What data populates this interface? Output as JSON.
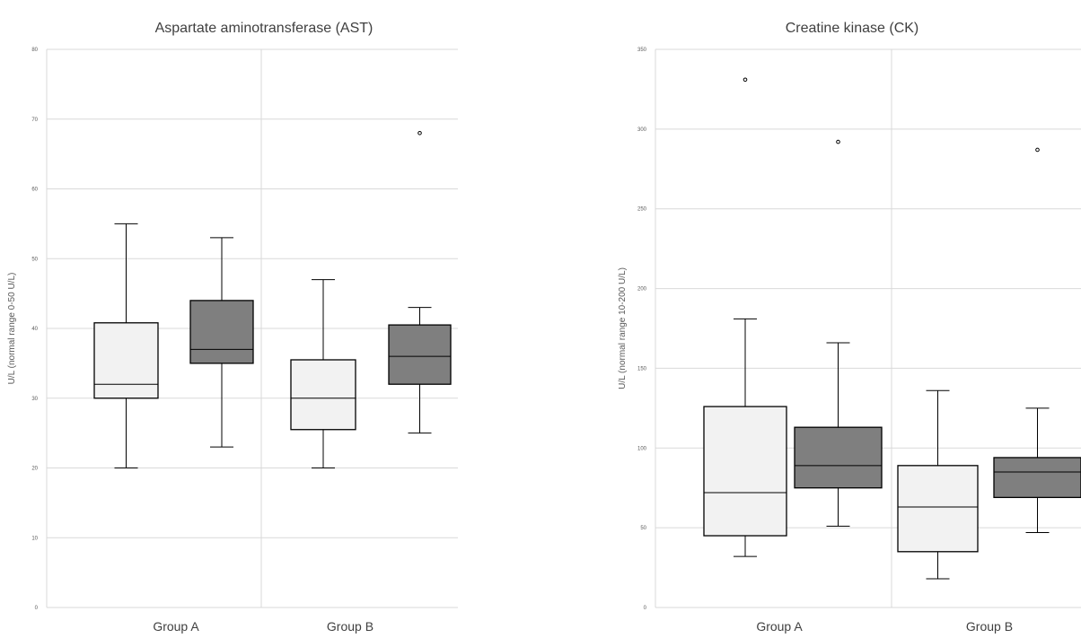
{
  "chart_data": [
    {
      "type": "box",
      "title": "Aspartate aminotransferase (AST)",
      "ylabel": "U/L (normal range 0-50 U/L)",
      "ylim": [
        0,
        80
      ],
      "yticks": [
        0,
        10,
        20,
        30,
        40,
        50,
        60,
        70,
        80
      ],
      "grid": true,
      "categories": [
        "Group A",
        "Group B"
      ],
      "boxes": [
        {
          "category": "Group A",
          "fill": "#f2f2f2",
          "min": 20,
          "q1": 30,
          "median": 32,
          "q3": 40.8,
          "max": 55,
          "outliers": []
        },
        {
          "category": "Group A",
          "fill": "#7f7f7f",
          "min": 23,
          "q1": 35,
          "median": 37,
          "q3": 44,
          "max": 53,
          "outliers": []
        },
        {
          "category": "Group B",
          "fill": "#f2f2f2",
          "min": 20,
          "q1": 25.5,
          "median": 30,
          "q3": 35.5,
          "max": 47,
          "outliers": []
        },
        {
          "category": "Group B",
          "fill": "#7f7f7f",
          "min": 25,
          "q1": 32,
          "median": 36,
          "q3": 40.5,
          "max": 43,
          "outliers": [
            68
          ]
        }
      ]
    },
    {
      "type": "box",
      "title": "Creatine kinase (CK)",
      "ylabel": "U/L (normal range 10-200 U/L)",
      "ylim": [
        0,
        350
      ],
      "yticks": [
        0,
        50,
        100,
        150,
        200,
        250,
        300,
        350
      ],
      "grid": true,
      "categories": [
        "Group A",
        "Group B"
      ],
      "boxes": [
        {
          "category": "Group A",
          "fill": "#f2f2f2",
          "min": 32,
          "q1": 45,
          "median": 72,
          "q3": 126,
          "max": 181,
          "outliers": [
            331
          ]
        },
        {
          "category": "Group A",
          "fill": "#7f7f7f",
          "min": 51,
          "q1": 75,
          "median": 89,
          "q3": 113,
          "max": 166,
          "outliers": [
            292
          ]
        },
        {
          "category": "Group B",
          "fill": "#f2f2f2",
          "min": 18,
          "q1": 35,
          "median": 63,
          "q3": 89,
          "max": 136,
          "outliers": []
        },
        {
          "category": "Group B",
          "fill": "#7f7f7f",
          "min": 47,
          "q1": 69,
          "median": 85,
          "q3": 94,
          "max": 125,
          "outliers": [
            287
          ]
        }
      ]
    }
  ]
}
